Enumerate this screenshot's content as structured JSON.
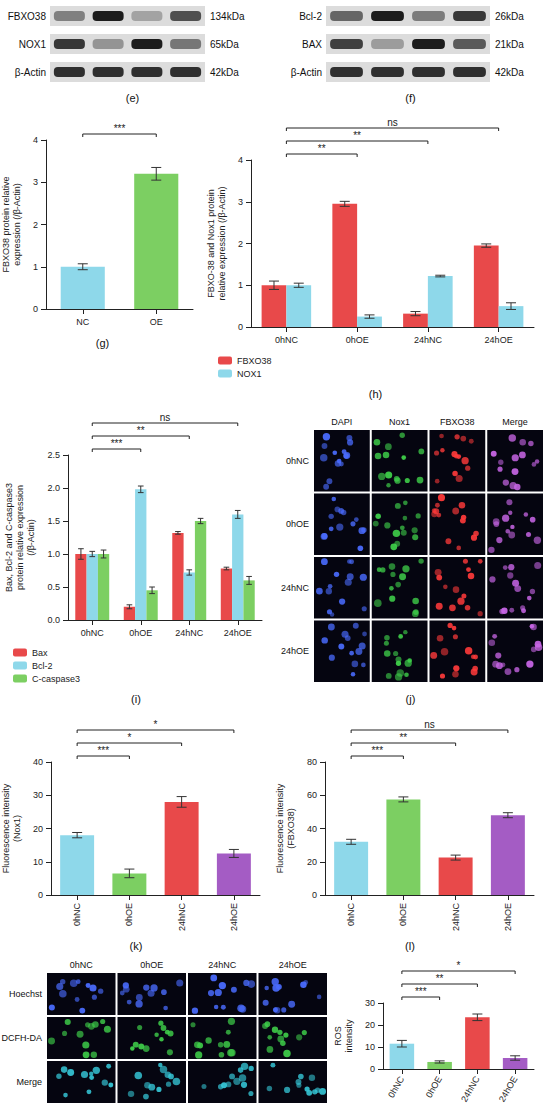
{
  "chart_data": [
    {
      "panel": "(g)",
      "type": "bar",
      "categories": [
        "NC",
        "OE"
      ],
      "values": [
        1.0,
        3.2
      ],
      "errors": [
        0.07,
        0.15
      ],
      "colors": [
        "#8ed8ea",
        "#7ccf62"
      ],
      "y_label": "FBXO38 protein relative expression (/β-Actin)",
      "ylim": [
        0,
        4
      ],
      "yticks": [
        0,
        1,
        2,
        3,
        4
      ],
      "annotations": [
        {
          "from": "NC",
          "to": "OE",
          "text": "***"
        }
      ]
    },
    {
      "panel": "(h)",
      "type": "bar",
      "categories": [
        "0hNC",
        "0hOE",
        "24hNC",
        "24hOE"
      ],
      "series": [
        {
          "name": "FBXO38",
          "color": "#e8494a",
          "values": [
            1.0,
            2.95,
            0.32,
            1.95
          ],
          "errors": [
            0.1,
            0.06,
            0.05,
            0.04
          ]
        },
        {
          "name": "NOX1",
          "color": "#8ed8ea",
          "values": [
            1.0,
            0.25,
            1.22,
            0.5
          ],
          "errors": [
            0.05,
            0.04,
            0.02,
            0.08
          ]
        }
      ],
      "y_label": "FBXO-38 and Nox1 protein relative expression (/β-Actin)",
      "ylim": [
        0,
        4
      ],
      "yticks": [
        0,
        1,
        2,
        3,
        4
      ],
      "legend": "bottom",
      "annotations": [
        {
          "from": "0hNC",
          "to": "0hOE",
          "text": "**"
        },
        {
          "from": "0hNC",
          "to": "24hNC",
          "text": "**"
        },
        {
          "from": "0hNC",
          "to": "24hOE",
          "text": "ns"
        }
      ]
    },
    {
      "panel": "(i)",
      "type": "bar",
      "categories": [
        "0hNC",
        "0hOE",
        "24hNC",
        "24hOE"
      ],
      "series": [
        {
          "name": "Bax",
          "color": "#e8494a",
          "values": [
            1.0,
            0.2,
            1.32,
            0.78
          ],
          "errors": [
            0.08,
            0.03,
            0.02,
            0.02
          ]
        },
        {
          "name": "Bcl-2",
          "color": "#8ed8ea",
          "values": [
            1.0,
            1.98,
            0.72,
            1.6
          ],
          "errors": [
            0.04,
            0.05,
            0.04,
            0.06
          ]
        },
        {
          "name": "C-caspase3",
          "color": "#7ccf62",
          "values": [
            1.0,
            0.45,
            1.5,
            0.6
          ],
          "errors": [
            0.06,
            0.05,
            0.04,
            0.06
          ]
        }
      ],
      "y_label": "Bax, Bcl-2 and C-caspase3 protein relative expression (/β-Actin)",
      "ylim": [
        0,
        2.5
      ],
      "yticks": [
        {
          "value": 0,
          "label": "0.0"
        },
        {
          "value": 0.5,
          "label": "0.5"
        },
        {
          "value": 1,
          "label": "1.0"
        },
        {
          "value": 1.5,
          "label": "1.5"
        },
        {
          "value": 2,
          "label": "2.0"
        },
        {
          "value": 2.5,
          "label": "2.5"
        }
      ],
      "legend": "bottom",
      "annotations": [
        {
          "from": "0hNC",
          "to": "0hOE",
          "text": "***"
        },
        {
          "from": "0hNC",
          "to": "24hNC",
          "text": "**"
        },
        {
          "from": "0hNC",
          "to": "24hOE",
          "text": "ns"
        }
      ]
    },
    {
      "panel": "(k)",
      "type": "bar",
      "categories": [
        "0hNC",
        "0hOE",
        "24hNC",
        "24hOE"
      ],
      "values": [
        18,
        6.5,
        28,
        12.5
      ],
      "errors": [
        0.8,
        1.3,
        1.6,
        1.2
      ],
      "colors": [
        "#8ed8ea",
        "#7ccf62",
        "#e8494a",
        "#a45cc4"
      ],
      "y_label": "Fluorescence intensity (Nox1)",
      "ylim": [
        0,
        40
      ],
      "yticks": [
        0,
        10,
        20,
        30,
        40
      ],
      "annotations": [
        {
          "from": "0hNC",
          "to": "0hOE",
          "text": "***"
        },
        {
          "from": "0hNC",
          "to": "24hNC",
          "text": "*"
        },
        {
          "from": "0hNC",
          "to": "24hOE",
          "text": "*"
        }
      ]
    },
    {
      "panel": "(l)",
      "type": "bar",
      "categories": [
        "0hNC",
        "0hOE",
        "24hNC",
        "24hOE"
      ],
      "values": [
        32,
        57.5,
        22.5,
        48
      ],
      "errors": [
        1.5,
        1.5,
        1.5,
        1.5
      ],
      "colors": [
        "#8ed8ea",
        "#7ccf62",
        "#e8494a",
        "#a45cc4"
      ],
      "y_label": "Fluorescence intensity (FBXO38)",
      "ylim": [
        0,
        80
      ],
      "yticks": [
        0,
        20,
        40,
        60,
        80
      ],
      "annotations": [
        {
          "from": "0hNC",
          "to": "0hOE",
          "text": "***"
        },
        {
          "from": "0hNC",
          "to": "24hNC",
          "text": "**"
        },
        {
          "from": "0hNC",
          "to": "24hOE",
          "text": "ns"
        }
      ]
    },
    {
      "type": "bar",
      "categories": [
        "0hNC",
        "0hOE",
        "24hNC",
        "24hOE"
      ],
      "values": [
        11.5,
        3.2,
        23.5,
        5
      ],
      "errors": [
        1.5,
        0.5,
        1.5,
        1.0
      ],
      "colors": [
        "#8ed8ea",
        "#7ccf62",
        "#e8494a",
        "#a45cc4"
      ],
      "y_label": "ROS intensity",
      "ylim": [
        0,
        30
      ],
      "yticks": [
        0,
        10,
        20,
        30
      ],
      "annotations": [
        {
          "from": "0hNC",
          "to": "0hOE",
          "text": "***"
        },
        {
          "from": "0hNC",
          "to": "24hNC",
          "text": "**"
        },
        {
          "from": "0hNC",
          "to": "24hOE",
          "text": "*"
        }
      ]
    }
  ],
  "blots": [
    {
      "panel": "(e)",
      "rows": [
        {
          "label": "FBXO38",
          "size": "134kDa"
        },
        {
          "label": "NOX1",
          "size": "65kDa"
        },
        {
          "label": "β-Actin",
          "size": "42kDa"
        }
      ]
    },
    {
      "panel": "(f)",
      "rows": [
        {
          "label": "Bcl-2",
          "size": "26kDa"
        },
        {
          "label": "BAX",
          "size": "21kDa"
        },
        {
          "label": "β-Actin",
          "size": "42kDa"
        }
      ]
    }
  ],
  "micrographs": [
    {
      "panel": "(j)",
      "columns": [
        "DAPI",
        "Nox1",
        "FBXO38",
        "Merge"
      ],
      "rows": [
        "0hNC",
        "0hOE",
        "24hNC",
        "24hOE"
      ]
    },
    {
      "columns": [
        "0hNC",
        "0hOE",
        "24hNC",
        "24hOE"
      ],
      "rows": [
        "Hoechst",
        "DCFH-DA",
        "Merge"
      ]
    }
  ]
}
